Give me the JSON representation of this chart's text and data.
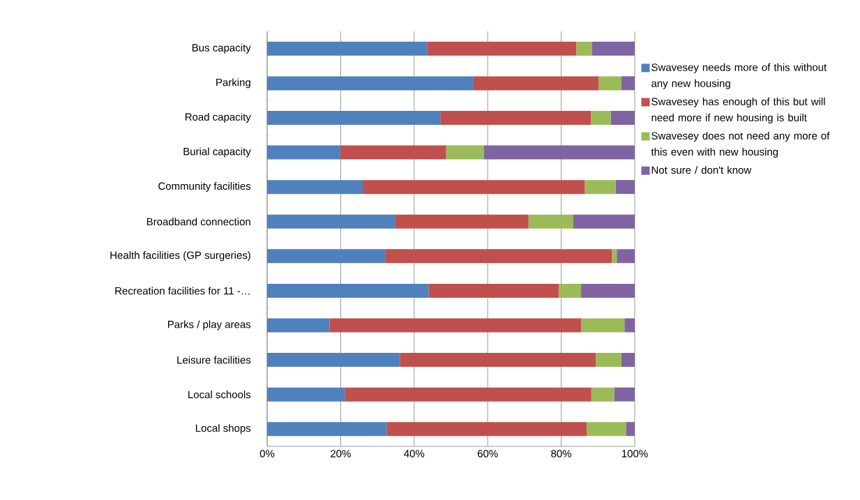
{
  "chart_data": {
    "type": "bar",
    "orientation": "horizontal",
    "stacked": true,
    "categories": [
      "Bus capacity",
      "Parking",
      "Road capacity",
      "Burial capacity",
      "Community facilities",
      "Broadband connection",
      "Health facilities (GP surgeries)",
      "Recreation facilities for 11 -…",
      "Parks / play areas",
      "Leisure facilities",
      "Local schools",
      "Local shops"
    ],
    "series": [
      {
        "name": "Swavesey needs more of this without any new housing",
        "color": "#4f81bd",
        "values": [
          43.5,
          56.0,
          47.1,
          19.9,
          26.0,
          34.9,
          32.1,
          43.9,
          17.0,
          36.1,
          21.1,
          32.5
        ]
      },
      {
        "name": "Swavesey has enough of this but will need more if new housing is built",
        "color": "#c0504d",
        "values": [
          40.6,
          34.2,
          41.0,
          28.8,
          60.4,
          36.2,
          61.7,
          35.4,
          68.4,
          53.3,
          67.1,
          54.4
        ]
      },
      {
        "name": "Swavesey does not need any more of this even with new housing",
        "color": "#9bbb59",
        "values": [
          4.2,
          6.2,
          5.4,
          10.2,
          8.4,
          12.2,
          1.3,
          6.1,
          11.8,
          7.0,
          6.2,
          10.7
        ]
      },
      {
        "name": "Not sure / don't know",
        "color": "#8064a2",
        "values": [
          11.7,
          3.6,
          6.5,
          41.1,
          5.2,
          16.7,
          4.9,
          14.6,
          2.8,
          3.6,
          5.6,
          2.4
        ]
      }
    ],
    "xlim": [
      0,
      100
    ],
    "xticks": [
      {
        "value": 0,
        "label": "0%"
      },
      {
        "value": 20,
        "label": "20%"
      },
      {
        "value": 40,
        "label": "40%"
      },
      {
        "value": 60,
        "label": "60%"
      },
      {
        "value": 80,
        "label": "80%"
      },
      {
        "value": 100,
        "label": "100%"
      }
    ],
    "grid": "x",
    "legend": "right"
  }
}
